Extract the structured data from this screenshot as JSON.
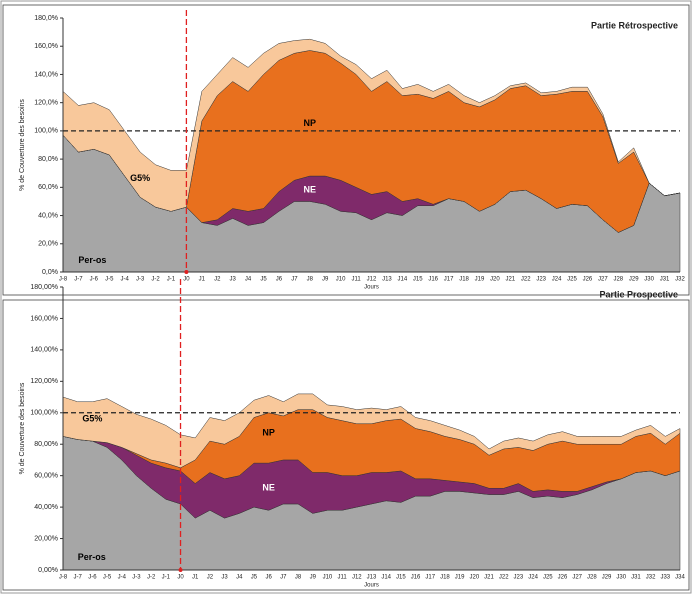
{
  "chart_data": [
    {
      "type": "stacked_area",
      "title": "Partie Rétrospective",
      "ylabel": "% de Couverture des besoins",
      "xlabel": "Jours",
      "categories": [
        "J-8",
        "J-7",
        "J-6",
        "J-5",
        "J-4",
        "J-3",
        "J-2",
        "J-1",
        "J0",
        "J1",
        "J2",
        "J3",
        "J4",
        "J5",
        "J6",
        "J7",
        "J8",
        "J9",
        "J10",
        "J11",
        "J12",
        "J13",
        "J14",
        "J15",
        "J16",
        "J17",
        "J18",
        "J19",
        "J20",
        "J21",
        "J22",
        "J23",
        "J24",
        "J25",
        "J26",
        "J27",
        "J28",
        "J29",
        "J30",
        "J31",
        "J32"
      ],
      "series": [
        {
          "name": "Per-os",
          "color": "#a6a6a6",
          "values": [
            97,
            85,
            87,
            83,
            68,
            53,
            46,
            43,
            46,
            35,
            33,
            38,
            33,
            35,
            43,
            50,
            50,
            48,
            43,
            42,
            37,
            42,
            40,
            47,
            47,
            52,
            50,
            43,
            48,
            57,
            58,
            52,
            45,
            48,
            47,
            37,
            28,
            33,
            63,
            54,
            56
          ]
        },
        {
          "name": "NE",
          "color": "#7f2a6a",
          "values": [
            0,
            0,
            0,
            0,
            0,
            0,
            0,
            0,
            0,
            0,
            4,
            7,
            10,
            10,
            14,
            15,
            18,
            20,
            22,
            18,
            18,
            15,
            10,
            5,
            1,
            0,
            0,
            0,
            0,
            0,
            0,
            0,
            0,
            0,
            0,
            0,
            0,
            0,
            0,
            0,
            0
          ]
        },
        {
          "name": "NP",
          "color": "#e8701e",
          "values": [
            0,
            0,
            0,
            0,
            0,
            0,
            0,
            0,
            0,
            72,
            88,
            90,
            85,
            95,
            93,
            90,
            89,
            87,
            83,
            80,
            73,
            78,
            75,
            74,
            75,
            76,
            70,
            74,
            74,
            73,
            74,
            73,
            81,
            80,
            81,
            73,
            49,
            52,
            0,
            0,
            0
          ]
        },
        {
          "name": "G5%",
          "color": "#f8c89b",
          "values": [
            31,
            33,
            33,
            32,
            32,
            32,
            30,
            29,
            26,
            21,
            15,
            17,
            17,
            15,
            12,
            9,
            8,
            7,
            5,
            7,
            9,
            8,
            5,
            7,
            5,
            5,
            5,
            3,
            3,
            2,
            2,
            2,
            2,
            3,
            3,
            2,
            1,
            3,
            0,
            0,
            0
          ]
        }
      ],
      "ylim": [
        0,
        180
      ],
      "yticks": [
        {
          "value": 0,
          "label": "0,0%"
        },
        {
          "value": 20,
          "label": "20,0%"
        },
        {
          "value": 40,
          "label": "40,0%"
        },
        {
          "value": 60,
          "label": "60,0%"
        },
        {
          "value": 80,
          "label": "80,0%"
        },
        {
          "value": 100,
          "label": "100,0%"
        },
        {
          "value": 120,
          "label": "120,0%"
        },
        {
          "value": 140,
          "label": "140,0%"
        },
        {
          "value": 160,
          "label": "160,0%"
        },
        {
          "value": 180,
          "label": "180,0%"
        }
      ],
      "hline": 100,
      "vline": "J0"
    },
    {
      "type": "stacked_area",
      "title": "Partie Prospective",
      "ylabel": "% de Couverture des besoins",
      "xlabel": "Jours",
      "categories": [
        "J-8",
        "J-7",
        "J-6",
        "J-5",
        "J-4",
        "J-3",
        "J-2",
        "J-1",
        "J0",
        "J1",
        "J2",
        "J3",
        "J4",
        "J5",
        "J6",
        "J7",
        "J8",
        "J9",
        "J10",
        "J11",
        "J12",
        "J13",
        "J14",
        "J15",
        "J16",
        "J17",
        "J18",
        "J19",
        "J20",
        "J21",
        "J22",
        "J23",
        "J24",
        "J25",
        "J26",
        "J27",
        "J28",
        "J29",
        "J30",
        "J31",
        "J32",
        "J33",
        "J34"
      ],
      "series": [
        {
          "name": "Per-os",
          "color": "#a6a6a6",
          "values": [
            85,
            83,
            82,
            78,
            70,
            60,
            52,
            45,
            42,
            33,
            38,
            33,
            36,
            40,
            38,
            42,
            42,
            36,
            38,
            38,
            40,
            42,
            44,
            43,
            47,
            47,
            50,
            50,
            49,
            48,
            48,
            50,
            46,
            47,
            46,
            48,
            51,
            55,
            58,
            62,
            63,
            60,
            63
          ]
        },
        {
          "name": "NE",
          "color": "#7f2a6a",
          "values": [
            0,
            0,
            0,
            3,
            8,
            13,
            16,
            20,
            21,
            22,
            24,
            25,
            24,
            28,
            30,
            28,
            28,
            26,
            24,
            22,
            20,
            20,
            18,
            20,
            11,
            11,
            7,
            6,
            6,
            4,
            4,
            5,
            4,
            4,
            4,
            2,
            2,
            1,
            0,
            0,
            0,
            0,
            0
          ]
        },
        {
          "name": "NP",
          "color": "#e8701e",
          "values": [
            0,
            0,
            0,
            0,
            0,
            1,
            2,
            3,
            2,
            15,
            20,
            22,
            25,
            29,
            32,
            28,
            32,
            40,
            35,
            35,
            33,
            31,
            33,
            33,
            32,
            30,
            28,
            27,
            25,
            21,
            25,
            23,
            26,
            29,
            32,
            30,
            27,
            24,
            22,
            23,
            24,
            20,
            24
          ]
        },
        {
          "name": "G5%",
          "color": "#f8c89b",
          "values": [
            25,
            24,
            25,
            28,
            26,
            25,
            26,
            24,
            21,
            14,
            15,
            15,
            15,
            11,
            11,
            9,
            10,
            10,
            8,
            9,
            9,
            10,
            7,
            8,
            7,
            7,
            7,
            6,
            5,
            4,
            5,
            6,
            6,
            6,
            6,
            5,
            5,
            5,
            5,
            4,
            5,
            5,
            3
          ]
        }
      ],
      "ylim": [
        0,
        180
      ],
      "yticks": [
        {
          "value": 0,
          "label": "0,00%"
        },
        {
          "value": 20,
          "label": "20,00%"
        },
        {
          "value": 40,
          "label": "40,00%"
        },
        {
          "value": 60,
          "label": "60,00%"
        },
        {
          "value": 80,
          "label": "80,00%"
        },
        {
          "value": 100,
          "label": "100,00%"
        },
        {
          "value": 120,
          "label": "120,00%"
        },
        {
          "value": 140,
          "label": "140,00%"
        },
        {
          "value": 160,
          "label": "160,00%"
        },
        {
          "value": 180,
          "label": "180,00%"
        }
      ],
      "hline": 100,
      "vline": "J0"
    }
  ]
}
